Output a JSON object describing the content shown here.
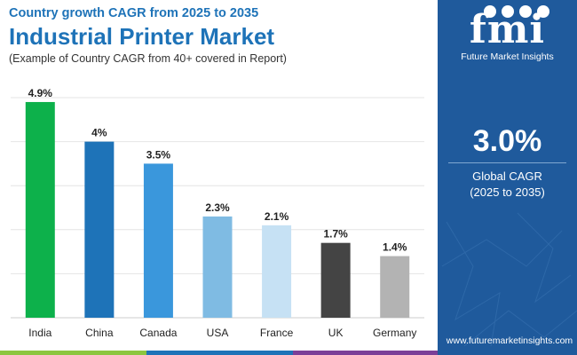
{
  "header": {
    "subtitle": "Country growth CAGR from 2025 to 2035",
    "title": "Industrial Printer Market",
    "note": "(Example of Country CAGR from 40+ covered in Report)"
  },
  "brand": {
    "logo_text": "fmi",
    "logo_caption": "Future Market Insights",
    "website": "www.futuremarketinsights.com"
  },
  "summary": {
    "value": "3.0%",
    "label": "Global CAGR",
    "range": "(2025 to 2035)"
  },
  "colors": {
    "title": "#1e73b8",
    "panel": "#1f5a9c",
    "strip": [
      "#8cc63f",
      "#1e73b8",
      "#7b3f98",
      "#1f5a9c"
    ]
  },
  "chart_data": {
    "type": "bar",
    "title": "Industrial Printer Market",
    "xlabel": "",
    "ylabel": "",
    "ylim": [
      0,
      5
    ],
    "grid": true,
    "categories": [
      "India",
      "China",
      "Canada",
      "USA",
      "France",
      "UK",
      "Germany"
    ],
    "values": [
      4.9,
      4.0,
      3.5,
      2.3,
      2.1,
      1.7,
      1.4
    ],
    "value_labels": [
      "4.9%",
      "4%",
      "3.5%",
      "2.3%",
      "2.1%",
      "1.7%",
      "1.4%"
    ],
    "bar_colors": [
      "#0db14b",
      "#1e73b8",
      "#3a97dc",
      "#7fbbe3",
      "#c6e1f4",
      "#444444",
      "#b3b3b3"
    ]
  }
}
